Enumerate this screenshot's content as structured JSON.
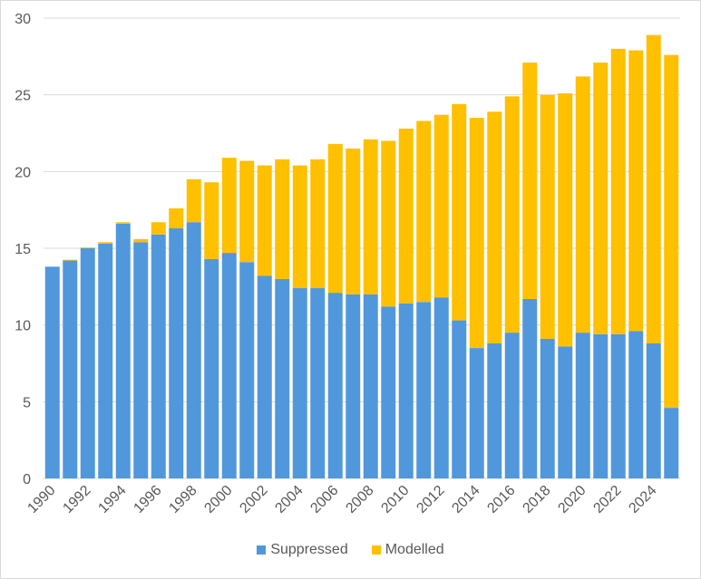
{
  "chart_data": {
    "type": "bar",
    "stacked": true,
    "title": "",
    "xlabel": "",
    "ylabel": "",
    "ylim": [
      0,
      30
    ],
    "yticks": [
      0,
      5,
      10,
      15,
      20,
      25,
      30
    ],
    "grid": true,
    "legend_position": "bottom",
    "categories": [
      "1990",
      "1991",
      "1992",
      "1993",
      "1994",
      "1995",
      "1996",
      "1997",
      "1998",
      "1999",
      "2000",
      "2001",
      "2002",
      "2003",
      "2004",
      "2005",
      "2006",
      "2007",
      "2008",
      "2009",
      "2010",
      "2011",
      "2012",
      "2013",
      "2014",
      "2015",
      "2016",
      "2017",
      "2018",
      "2019",
      "2020",
      "2021",
      "2022",
      "2023",
      "2024",
      "2025"
    ],
    "xtick_labels": [
      "1990",
      "1992",
      "1994",
      "1996",
      "1998",
      "2000",
      "2002",
      "2004",
      "2006",
      "2008",
      "2010",
      "2012",
      "2014",
      "2016",
      "2018",
      "2020",
      "2022",
      "2024"
    ],
    "series": [
      {
        "name": "Suppressed",
        "color": "#5197dc",
        "values": [
          13.8,
          14.2,
          15.0,
          15.3,
          16.6,
          15.4,
          15.9,
          16.3,
          16.7,
          14.3,
          14.7,
          14.1,
          13.2,
          13.0,
          12.4,
          12.4,
          12.1,
          12.0,
          12.0,
          11.2,
          11.4,
          11.5,
          11.8,
          10.3,
          8.5,
          8.8,
          9.5,
          11.7,
          9.1,
          8.6,
          9.5,
          9.4,
          9.4,
          9.6,
          8.8,
          4.6
        ]
      },
      {
        "name": "Modelled",
        "color": "#ffc000",
        "values": [
          0.0,
          0.05,
          0.05,
          0.1,
          0.1,
          0.2,
          0.8,
          1.3,
          2.8,
          5.0,
          6.2,
          6.6,
          7.2,
          7.8,
          8.0,
          8.4,
          9.7,
          9.5,
          10.1,
          10.8,
          11.4,
          11.8,
          11.9,
          14.1,
          15.0,
          15.1,
          15.4,
          15.4,
          15.9,
          16.5,
          16.7,
          17.7,
          18.6,
          18.3,
          20.1,
          23.0
        ]
      }
    ]
  }
}
